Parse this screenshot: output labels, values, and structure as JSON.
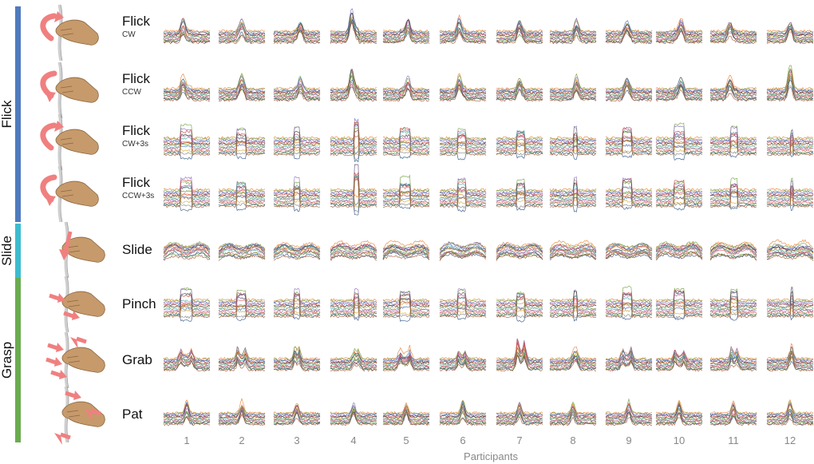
{
  "chart_data": {
    "type": "line",
    "title": "",
    "xlabel": "Participants",
    "ylabel": "",
    "participants": [
      "1",
      "2",
      "3",
      "4",
      "5",
      "6",
      "7",
      "8",
      "9",
      "10",
      "11",
      "12"
    ],
    "groups": [
      {
        "label": "Flick",
        "color": "#4f7bbf",
        "gestures": [
          "flick-cw",
          "flick-ccw",
          "flick-cw3",
          "flick-ccw3"
        ]
      },
      {
        "label": "Slide",
        "color": "#3dbccf",
        "gestures": [
          "slide"
        ]
      },
      {
        "label": "Grasp",
        "color": "#6aab4f",
        "gestures": [
          "pinch",
          "grab",
          "pat"
        ]
      }
    ],
    "gestures": [
      {
        "id": "flick-cw",
        "name": "Flick",
        "sub": "CW",
        "shape": "spike"
      },
      {
        "id": "flick-ccw",
        "name": "Flick",
        "sub": "CCW",
        "shape": "spike"
      },
      {
        "id": "flick-cw3",
        "name": "Flick",
        "sub": "CW+3s",
        "shape": "plateau"
      },
      {
        "id": "flick-ccw3",
        "name": "Flick",
        "sub": "CCW+3s",
        "shape": "plateau"
      },
      {
        "id": "slide",
        "name": "Slide",
        "sub": "",
        "shape": "hump"
      },
      {
        "id": "pinch",
        "name": "Pinch",
        "sub": "",
        "shape": "plateau"
      },
      {
        "id": "grab",
        "name": "Grab",
        "sub": "",
        "shape": "double"
      },
      {
        "id": "pat",
        "name": "Pat",
        "sub": "",
        "shape": "tap"
      }
    ],
    "series_count_per_panel": 14,
    "series_colors": [
      "#e87c2e",
      "#6c9e3c",
      "#8a6bb8",
      "#3b6fb3",
      "#c73b3b",
      "#3d3d3d",
      "#d4a83a",
      "#48a9a6",
      "#b55d9e",
      "#7f7f7f",
      "#e05d5d",
      "#5a8f29",
      "#2a4f7f",
      "#a0522d"
    ],
    "grid": false,
    "legend": "none"
  },
  "icons": {
    "flick-cw": "hand-flick-cw-icon",
    "flick-ccw": "hand-flick-ccw-icon",
    "flick-cw3": "hand-flick-cw-hold-icon",
    "flick-ccw3": "hand-flick-ccw-hold-icon",
    "slide": "hand-slide-icon",
    "pinch": "hand-pinch-icon",
    "grab": "hand-grab-icon",
    "pat": "hand-pat-icon"
  },
  "colors": {
    "arrow": "#f08080",
    "skin": "#c79a6b",
    "cord": "#cfcfcf"
  }
}
